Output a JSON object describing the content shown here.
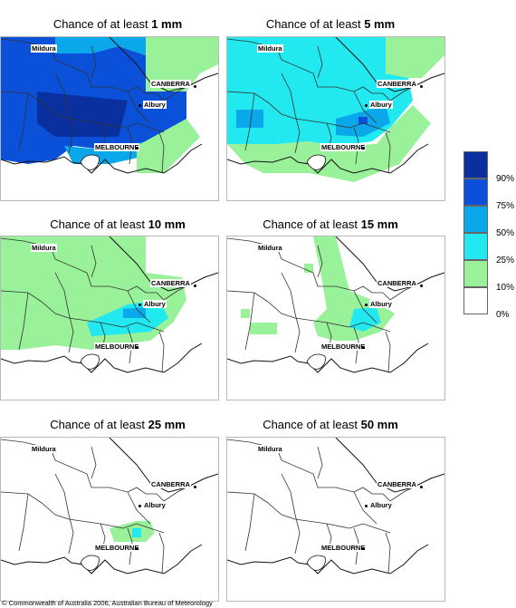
{
  "panels": [
    {
      "prefix": "Chance of at least ",
      "amount": "1 mm",
      "fills": [
        {
          "c": "#0a50d8",
          "poly": "0,0 60,0 60,18 100,18 130,10 160,20 160,60 205,60 205,90 165,120 120,125 80,120 60,135 30,140 0,135"
        },
        {
          "c": "#0a2f9e",
          "poly": "40,60 140,70 130,110 60,110 40,95"
        },
        {
          "c": "#0aa8ea",
          "poly": "60,0 160,0 160,20 130,10 100,18 60,18"
        },
        {
          "c": "#0aa8ea",
          "poly": "70,120 120,125 160,115 165,130 120,140 80,140"
        },
        {
          "c": "#99f299",
          "poly": "160,0 240,0 240,30 220,40 205,60 160,60"
        },
        {
          "c": "#99f299",
          "poly": "150,120 205,90 220,110 180,150 150,150"
        }
      ]
    },
    {
      "prefix": "Chance of at least ",
      "amount": "5 mm",
      "fills": [
        {
          "c": "#22e8f0",
          "poly": "0,0 175,0 175,40 200,45 205,70 180,100 160,115 120,120 90,115 55,118 20,120 0,118"
        },
        {
          "c": "#0aa8ea",
          "poly": "10,80 40,80 40,100 10,100"
        },
        {
          "c": "#0aa8ea",
          "poly": "120,90 175,75 180,95 150,110 120,108"
        },
        {
          "c": "#0a50d8",
          "poly": "145,88 155,88 155,96 145,96"
        },
        {
          "c": "#99f299",
          "poly": "175,0 240,0 240,20 215,45 200,45 175,40"
        },
        {
          "c": "#99f299",
          "poly": "0,118 55,118 90,115 120,120 165,118 180,100 205,75 225,95 190,140 140,160 90,150 40,150 20,140"
        }
      ]
    },
    {
      "prefix": "Chance of at least ",
      "amount": "10 mm",
      "fills": [
        {
          "c": "#99f299",
          "poly": "0,0 160,0 160,40 200,45 205,70 190,95 165,115 120,120 100,125 60,120 20,125 0,125"
        },
        {
          "c": "#22e8f0",
          "poly": "95,95 140,75 175,70 185,90 165,105 130,108 100,110"
        },
        {
          "c": "#0aa8ea",
          "poly": "135,80 160,78 160,90 135,90"
        }
      ]
    },
    {
      "prefix": "Chance of at least ",
      "amount": "15 mm",
      "fills": [
        {
          "c": "#99f299",
          "poly": "95,0 120,0 130,40 135,60 160,70 185,85 170,105 140,115 120,115 100,110 95,95 110,80 105,50"
        },
        {
          "c": "#22e8f0",
          "poly": "140,80 165,78 170,95 150,105 135,100"
        },
        {
          "c": "#99f299",
          "poly": "15,80 25,80 25,90 15,90"
        },
        {
          "c": "#99f299",
          "poly": "25,95 55,95 55,108 25,108"
        },
        {
          "c": "#99f299",
          "poly": "85,30 95,30 95,40 85,40"
        }
      ]
    },
    {
      "prefix": "Chance of at least ",
      "amount": "25 mm",
      "fills": [
        {
          "c": "#99f299",
          "poly": "120,100 150,92 165,92 170,105 160,115 125,115"
        },
        {
          "c": "#22e8f0",
          "poly": "145,100 155,100 155,110 145,110"
        }
      ]
    },
    {
      "prefix": "Chance of at least ",
      "amount": "50 mm",
      "fills": []
    }
  ],
  "cities": {
    "mildura": "Mildura",
    "canberra": "CANBERRA",
    "albury": "Albury",
    "melbourne": "MELBOURNE"
  },
  "legend": [
    {
      "color": "#0a2f9e",
      "label": "90%"
    },
    {
      "color": "#0a50d8",
      "label": "75%"
    },
    {
      "color": "#0aa8ea",
      "label": "50%"
    },
    {
      "color": "#22e8f0",
      "label": "25%"
    },
    {
      "color": "#99f299",
      "label": "10%"
    },
    {
      "color": "#ffffff",
      "label": "0%"
    }
  ],
  "copyright": "© Commonwealth of Australia 2006, Australian Bureau of Meteorology"
}
